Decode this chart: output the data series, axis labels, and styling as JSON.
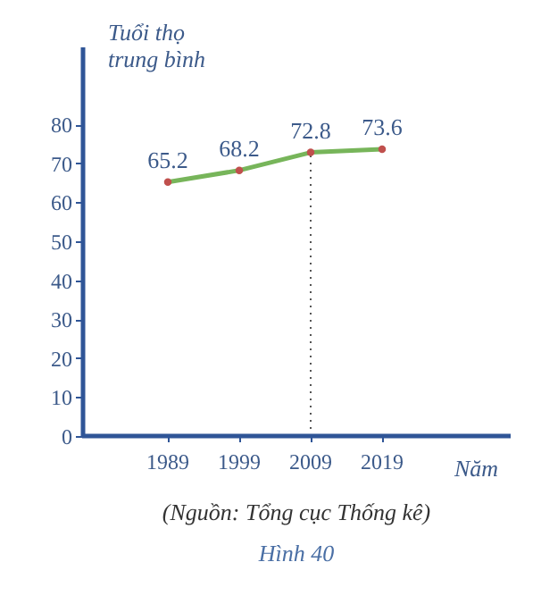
{
  "chart_data": {
    "type": "line",
    "title": "Hình 40",
    "ylabel": "Tuổi thọ trung bình",
    "xlabel": "Năm",
    "categories": [
      "1989",
      "1999",
      "2009",
      "2019"
    ],
    "series": [
      {
        "color": "#77b55a",
        "values": [
          65.2,
          68.2,
          72.8,
          73.6
        ]
      }
    ],
    "ylim": [
      0,
      100
    ],
    "yticks": [
      0,
      10,
      20,
      30,
      40,
      50,
      60,
      70,
      80
    ],
    "ref_lines": [
      {
        "axis": "x",
        "value": "2009",
        "line_style": "dotted",
        "color": "#555555"
      }
    ],
    "annotations": [
      "(Nguồn: Tổng cục Thống kê)"
    ],
    "data_labels": true,
    "grid": false,
    "marker": "circle",
    "line_style": "solid"
  }
}
